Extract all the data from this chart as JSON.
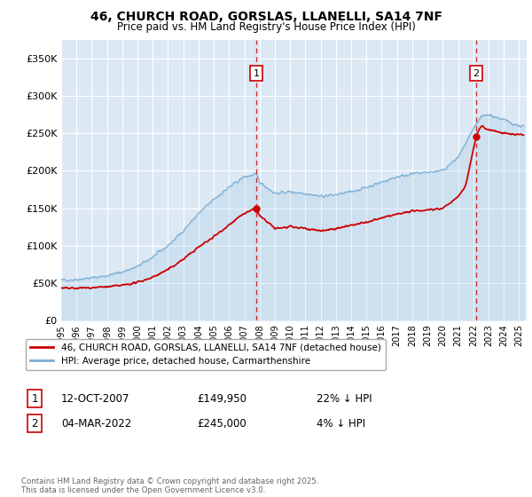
{
  "title": "46, CHURCH ROAD, GORSLAS, LLANELLI, SA14 7NF",
  "subtitle": "Price paid vs. HM Land Registry's House Price Index (HPI)",
  "ylabel_ticks": [
    "£0",
    "£50K",
    "£100K",
    "£150K",
    "£200K",
    "£250K",
    "£300K",
    "£350K"
  ],
  "ytick_values": [
    0,
    50000,
    100000,
    150000,
    200000,
    250000,
    300000,
    350000
  ],
  "ylim": [
    0,
    375000
  ],
  "xlim_start": 1995.0,
  "xlim_end": 2025.5,
  "background_color": "#dce9f5",
  "grid_color": "#ffffff",
  "red_line_color": "#cc0000",
  "blue_line_color": "#7aadd4",
  "vline_color": "#cc0000",
  "marker1_x": 2007.79,
  "marker1_y": 149950,
  "marker2_x": 2022.17,
  "marker2_y": 245000,
  "legend1_label": "46, CHURCH ROAD, GORSLAS, LLANELLI, SA14 7NF (detached house)",
  "legend2_label": "HPI: Average price, detached house, Carmarthenshire",
  "info1_date": "12-OCT-2007",
  "info1_price": "£149,950",
  "info1_hpi": "22% ↓ HPI",
  "info2_date": "04-MAR-2022",
  "info2_price": "£245,000",
  "info2_hpi": "4% ↓ HPI",
  "footer": "Contains HM Land Registry data © Crown copyright and database right 2025.\nThis data is licensed under the Open Government Licence v3.0.",
  "xtick_years": [
    1995,
    1996,
    1997,
    1998,
    1999,
    2000,
    2001,
    2002,
    2003,
    2004,
    2005,
    2006,
    2007,
    2008,
    2009,
    2010,
    2011,
    2012,
    2013,
    2014,
    2015,
    2016,
    2017,
    2018,
    2019,
    2020,
    2021,
    2022,
    2023,
    2024,
    2025
  ]
}
